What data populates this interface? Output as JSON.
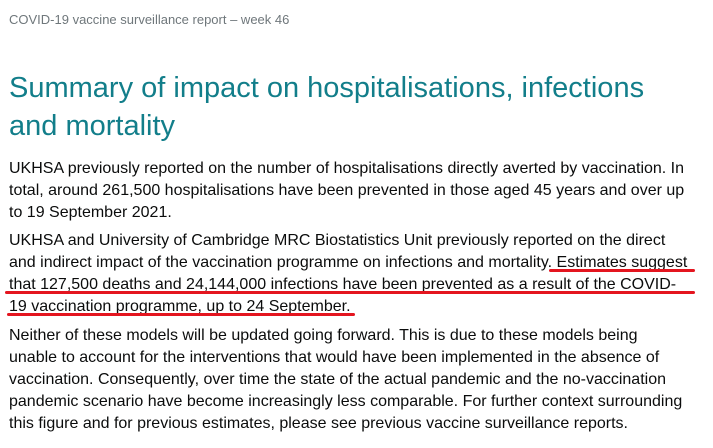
{
  "header": {
    "running_title": "COVID-19 vaccine surveillance report – week 46"
  },
  "section": {
    "title_line1": "Summary of impact on hospitalisations, infections",
    "title_line2": "and mortality"
  },
  "paragraphs": {
    "p1": [
      "UKHSA previously reported on the number of hospitalisations directly averted by vaccination. In",
      "total, around 261,500 hospitalisations have been prevented in those aged 45 years and over up",
      "to 19 September 2021."
    ],
    "p2": {
      "line1": "UKHSA and University of Cambridge MRC Biostatistics Unit previously reported on the direct",
      "line2_plain": "and indirect impact of the vaccination programme on infections and mortality. ",
      "line2_highlight": "Estimates suggest",
      "line3": "that 127,500 deaths and 24,144,000 infections have been prevented as a result of the COVID-",
      "line4": "19 vaccination programme, up to 24 September."
    },
    "p3": [
      "Neither of these models will be updated going forward. This is due to these models being",
      "unable to account for the interventions that would have been implemented in the absence of",
      "vaccination. Consequently, over time the state of the actual pandemic and the no-vaccination",
      "pandemic scenario have become increasingly less comparable. For further context surrounding",
      "this figure and for previous estimates, please see previous vaccine surveillance reports."
    ]
  },
  "annotation": {
    "underline_color": "#e4151f"
  }
}
